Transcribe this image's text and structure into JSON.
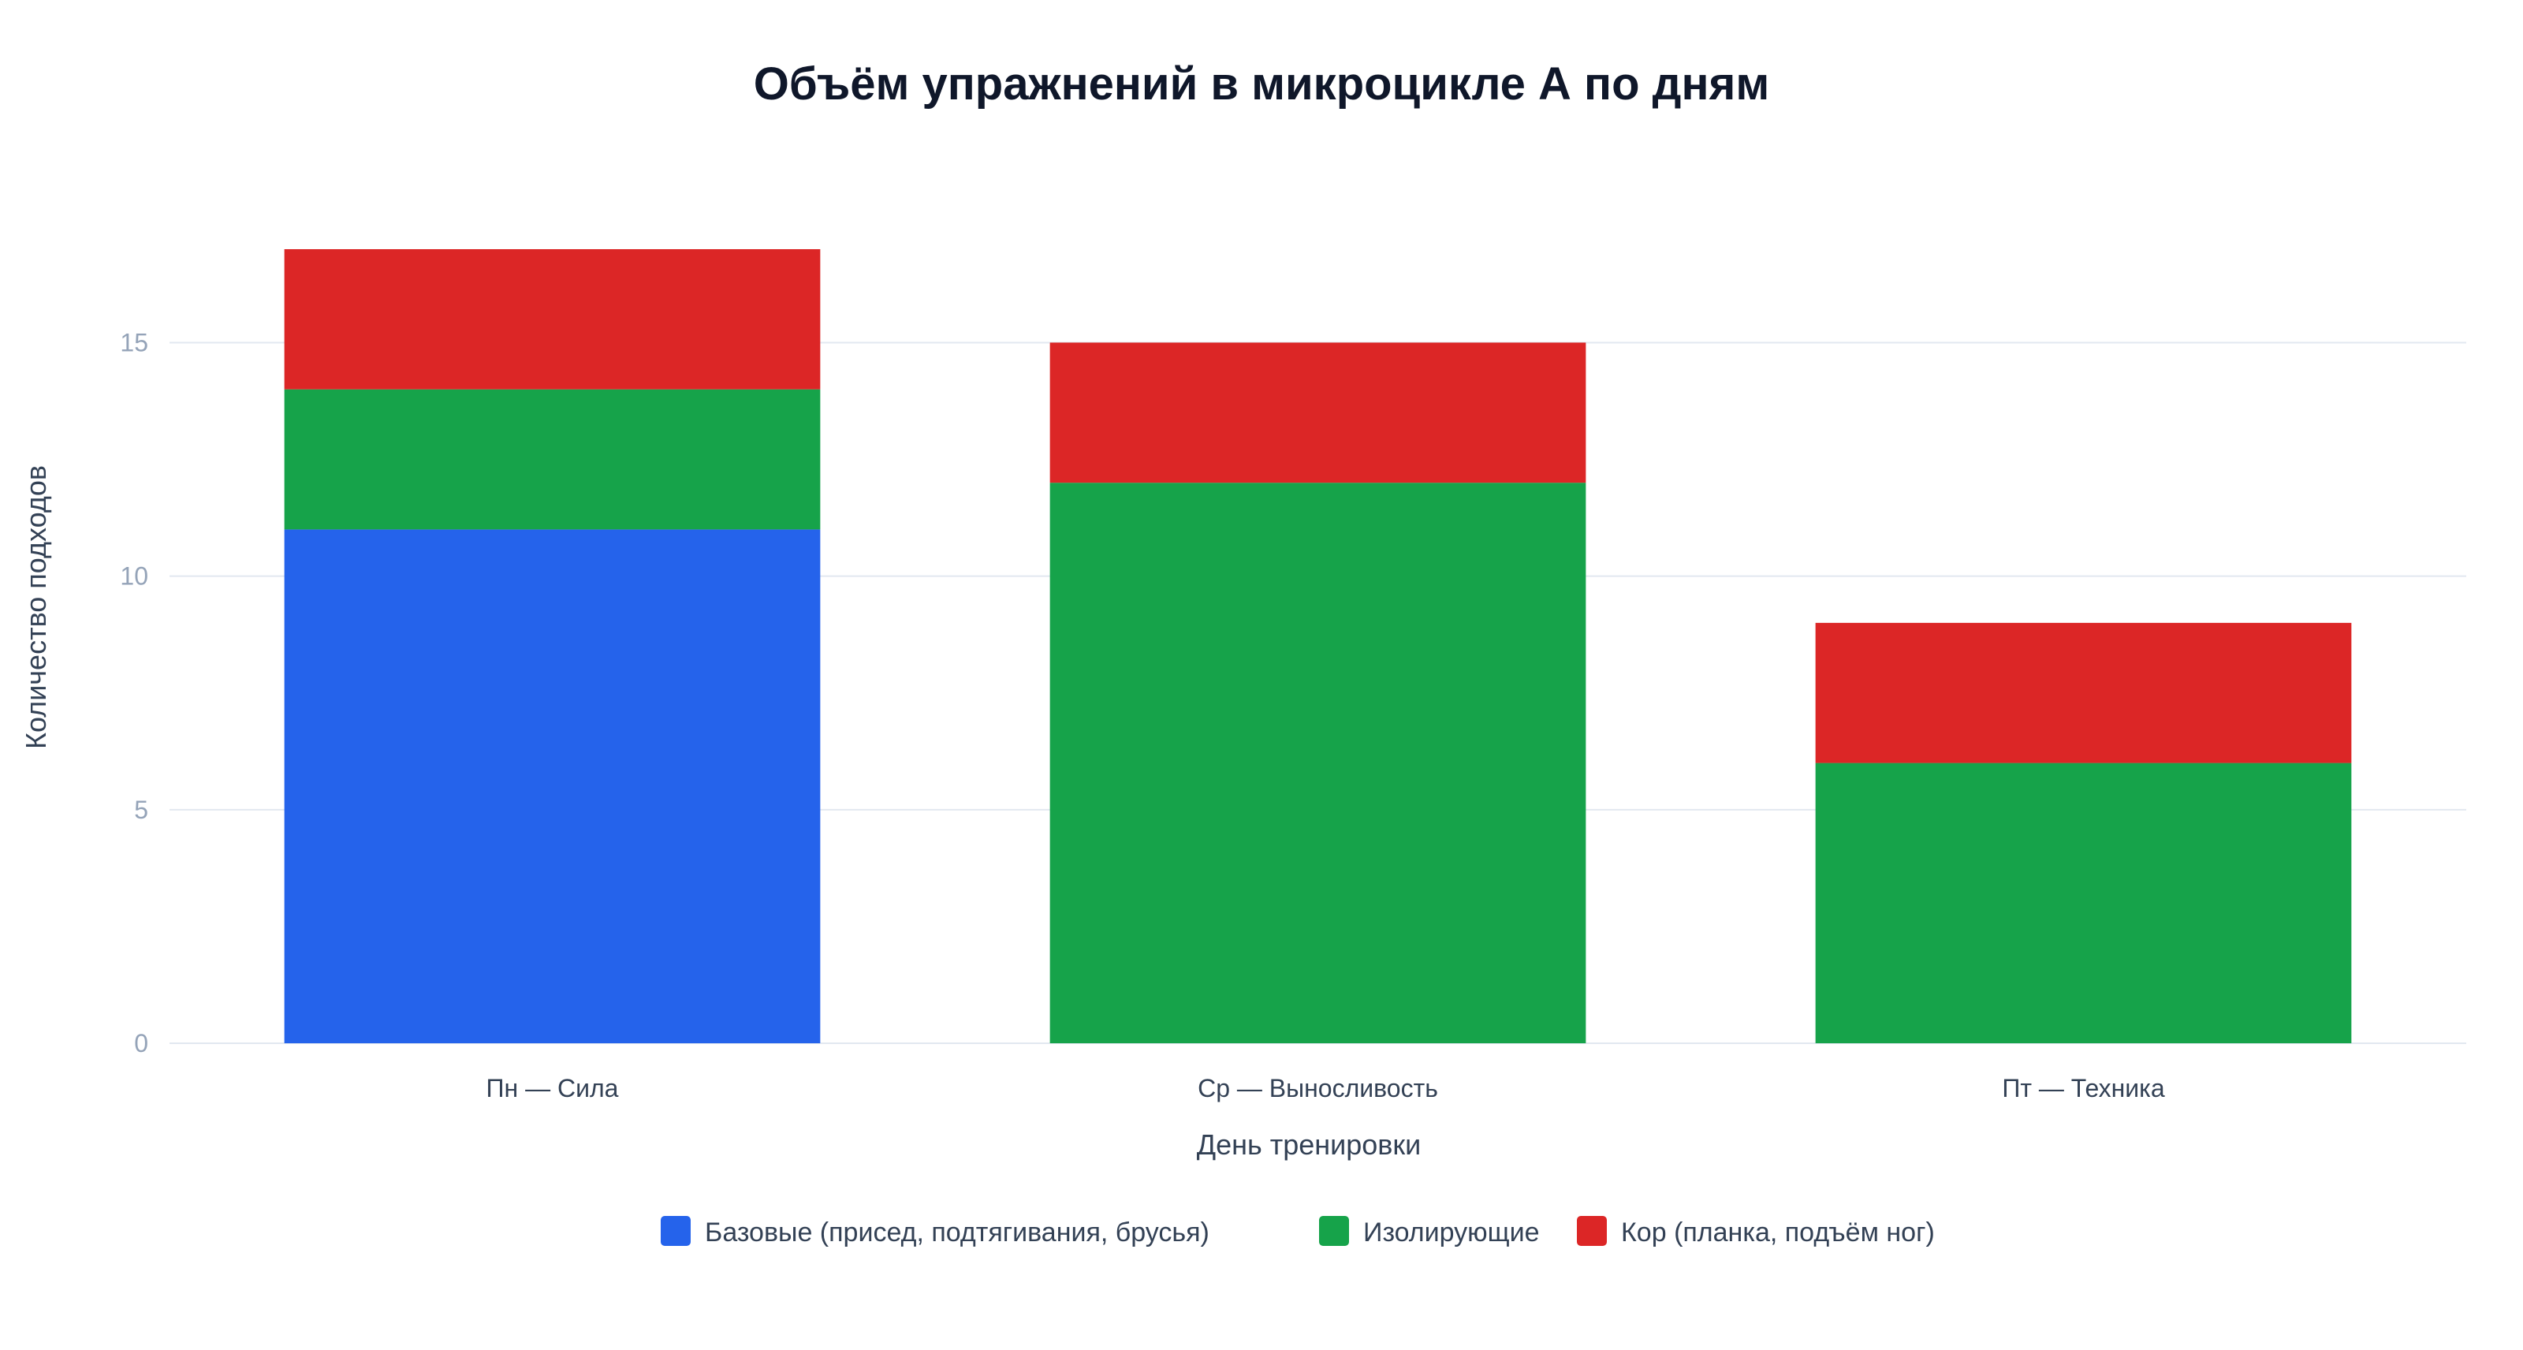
{
  "chart_data": {
    "type": "bar",
    "stacked": true,
    "title": "Объём упражнений в микроцикле А по дням",
    "xlabel": "День тренировки",
    "ylabel": "Количество подходов",
    "categories": [
      "Пн — Сила",
      "Ср — Выносливость",
      "Пт — Техника"
    ],
    "series": [
      {
        "name": "Базовые (присед, подтягивания, брусья)",
        "color": "#2563eb",
        "values": [
          11,
          0,
          0
        ]
      },
      {
        "name": "Изолирующие",
        "color": "#16a34a",
        "values": [
          3,
          12,
          6
        ]
      },
      {
        "name": "Кор (планка, подъём ног)",
        "color": "#dc2626",
        "values": [
          3,
          3,
          3
        ]
      }
    ],
    "ylim": [
      0,
      17
    ],
    "yticks": [
      0,
      5,
      10,
      15
    ],
    "grid": true,
    "legend_position": "bottom"
  }
}
